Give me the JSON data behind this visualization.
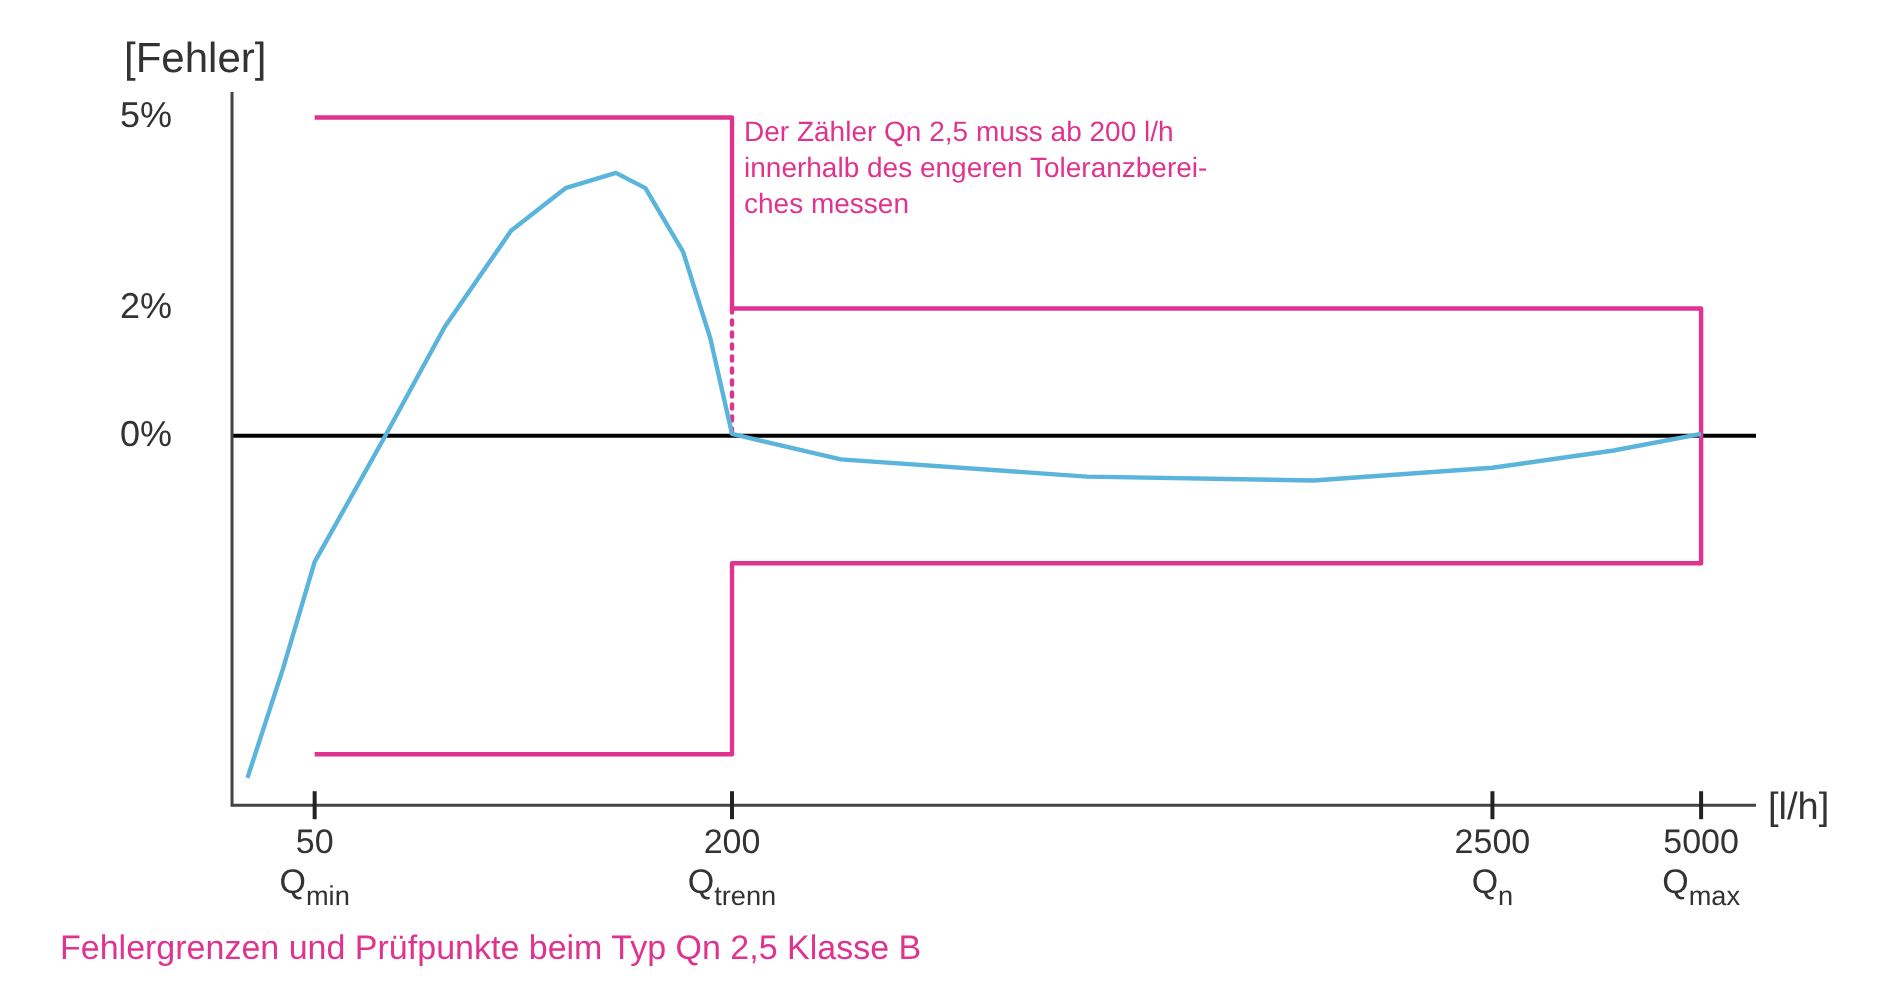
{
  "chart_data": {
    "type": "line",
    "title": "Fehlergrenzen und Prüfpunkte beim Typ Qn 2,5 Klasse B",
    "xlabel": "[l/h]",
    "ylabel": "[Fehler]",
    "annotations": [
      {
        "text": "Der Zähler Qn 2,5 muss ab 200 l/h\ninnerhalb des engeren Toleranzberei-\nches messen",
        "x": 200,
        "y": 5
      }
    ],
    "log": "x",
    "xlim": [
      38,
      6000
    ],
    "xticks": [
      {
        "value": 50,
        "label": "50\nQ$_{min}$"
      },
      {
        "value": 200,
        "label": "200\nQ$_{trenn}$"
      },
      {
        "value": 2500,
        "label": "2500\nQ$_{n}$"
      },
      {
        "value": 5000,
        "label": "5000\nQ$_{max}$"
      }
    ],
    "ylim": [
      -5.8,
      5.4
    ],
    "yticks": [
      {
        "value": 0,
        "label": "0%"
      },
      {
        "value": 2,
        "label": "2%"
      },
      {
        "value": 5,
        "label": "5%"
      }
    ],
    "grid": false,
    "legend": false,
    "marker": "none",
    "ref_lines": [
      {
        "axis": "y",
        "value": 0,
        "label": null,
        "color": "#000000"
      }
    ],
    "series": [
      {
        "color": "#5ab4dc",
        "x": [
          40,
          45,
          50,
          63,
          77,
          96,
          115,
          136,
          150,
          170,
          186,
          200,
          287,
          650,
          1380,
          2500,
          3740,
          5000
        ],
        "values": [
          -5.37,
          -3.66,
          -1.98,
          -0.03,
          1.71,
          3.22,
          3.89,
          4.13,
          3.89,
          2.89,
          1.54,
          0.03,
          -0.37,
          -0.64,
          -0.7,
          -0.5,
          -0.23,
          0.03
        ]
      },
      {
        "color": "#e0338f",
        "x": [
          50,
          200,
          200,
          5000,
          5000
        ],
        "values": [
          5,
          5,
          2,
          2,
          -2
        ]
      },
      {
        "color": "#e0338f",
        "x": [
          50,
          200,
          200,
          5000
        ],
        "values": [
          -5,
          -5,
          -2,
          -2
        ]
      },
      {
        "color": "#e0338f",
        "x": [
          200,
          200
        ],
        "values": [
          2,
          0
        ],
        "line_style": "dotted"
      }
    ]
  }
}
